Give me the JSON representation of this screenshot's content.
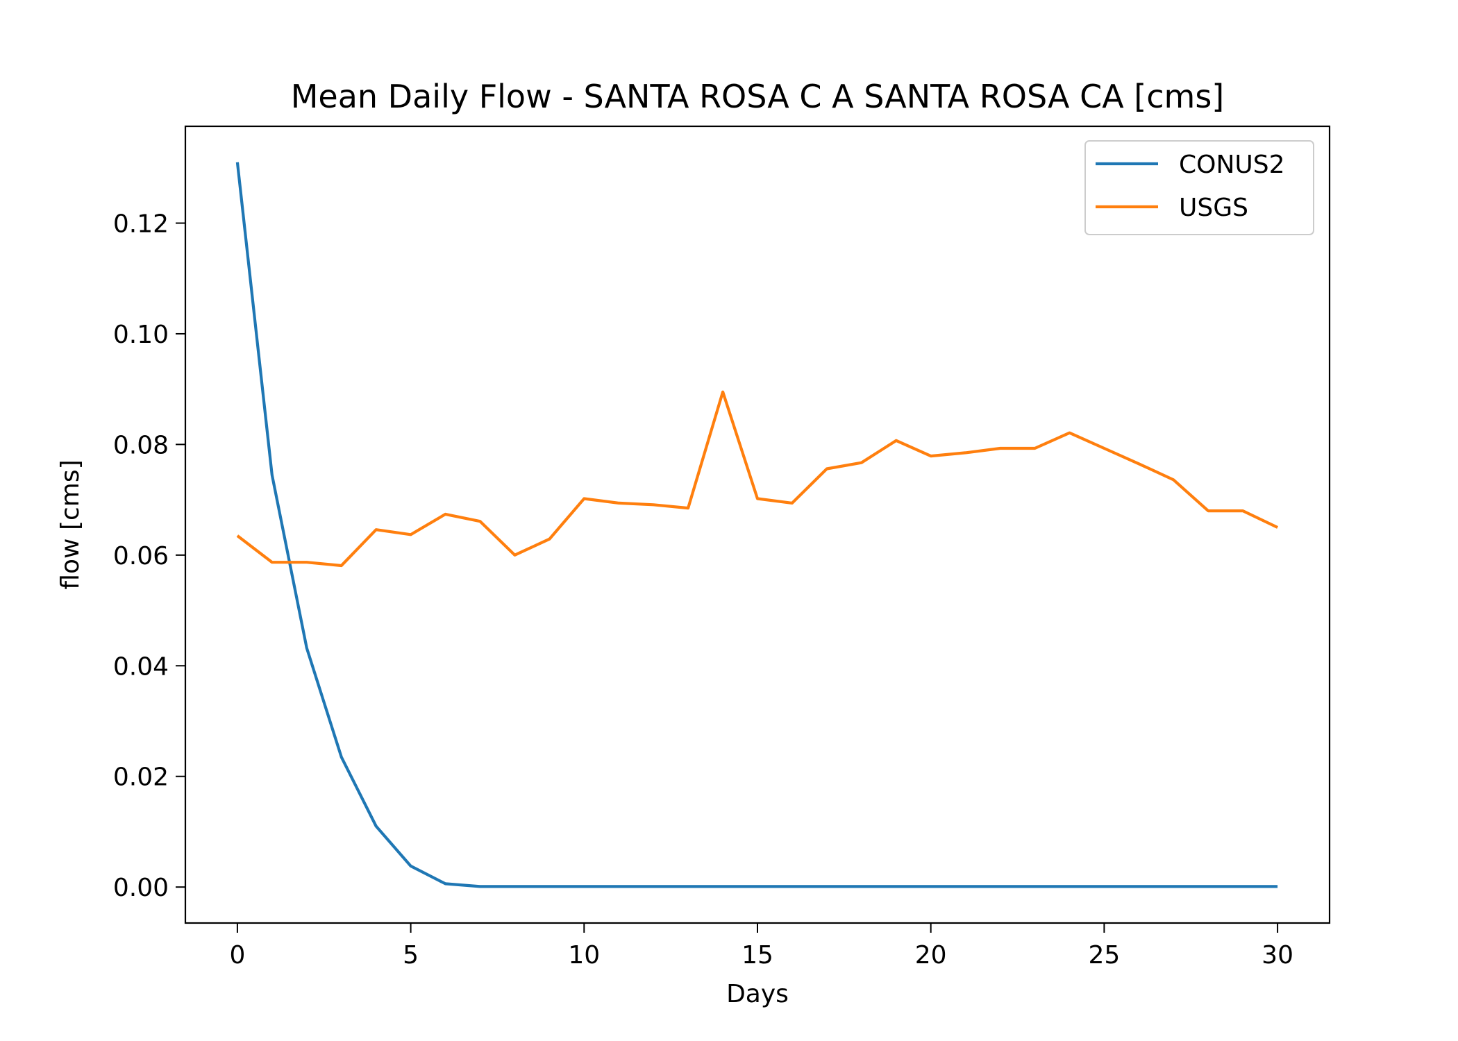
{
  "chart_data": {
    "type": "line",
    "title": "Mean Daily Flow - SANTA ROSA C A SANTA ROSA CA [cms]",
    "xlabel": "Days",
    "ylabel": "flow [cms]",
    "xlim": [
      -1.5,
      31.5
    ],
    "ylim": [
      -0.0065,
      0.1375
    ],
    "xticks": [
      0,
      5,
      10,
      15,
      20,
      25,
      30
    ],
    "xtick_labels": [
      "0",
      "5",
      "10",
      "15",
      "20",
      "25",
      "30"
    ],
    "yticks": [
      0.0,
      0.02,
      0.04,
      0.06,
      0.08,
      0.1,
      0.12
    ],
    "ytick_labels": [
      "0.00",
      "0.02",
      "0.04",
      "0.06",
      "0.08",
      "0.10",
      "0.12"
    ],
    "grid": false,
    "legend_position": "top-right",
    "x": [
      0,
      1,
      2,
      3,
      4,
      5,
      6,
      7,
      8,
      9,
      10,
      11,
      12,
      13,
      14,
      15,
      16,
      17,
      18,
      19,
      20,
      21,
      22,
      23,
      24,
      25,
      26,
      27,
      28,
      29,
      30
    ],
    "series": [
      {
        "name": "CONUS2",
        "color": "#1f77b4",
        "values": [
          0.131,
          0.0745,
          0.0432,
          0.0235,
          0.011,
          0.0038,
          0.0006,
          0.0001,
          0.0001,
          0.0001,
          0.0001,
          0.0001,
          0.0001,
          0.0001,
          0.0001,
          0.0001,
          0.0001,
          0.0001,
          0.0001,
          0.0001,
          0.0001,
          0.0001,
          0.0001,
          0.0001,
          0.0001,
          0.0001,
          0.0001,
          0.0001,
          0.0001,
          0.0001,
          0.0001
        ]
      },
      {
        "name": "USGS",
        "color": "#ff7f0e",
        "values": [
          0.0635,
          0.0587,
          0.0587,
          0.0581,
          0.0646,
          0.0637,
          0.0674,
          0.0661,
          0.06,
          0.0629,
          0.0702,
          0.0694,
          0.0691,
          0.0685,
          0.0895,
          0.0702,
          0.0694,
          0.0756,
          0.0767,
          0.0807,
          0.0779,
          0.0785,
          0.0793,
          0.0793,
          0.0821,
          0.0793,
          0.0765,
          0.0736,
          0.068,
          0.068,
          0.065
        ]
      }
    ]
  }
}
